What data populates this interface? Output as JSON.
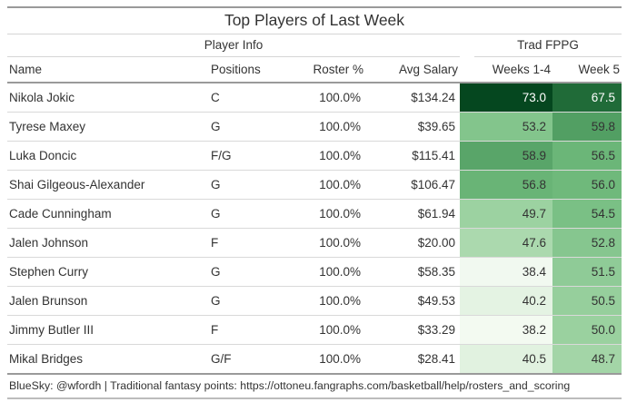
{
  "chart_data": {
    "type": "table",
    "title": "Top Players of Last Week",
    "column_groups": [
      {
        "label": "Player Info",
        "columns": [
          "Name",
          "Positions",
          "Roster %",
          "Avg Salary"
        ]
      },
      {
        "label": "Trad FPPG",
        "columns": [
          "Weeks 1-4",
          "Week 5"
        ]
      }
    ],
    "columns": [
      "Name",
      "Positions",
      "Roster %",
      "Avg Salary",
      "Weeks 1-4",
      "Week 5"
    ],
    "rows": [
      {
        "name": "Nikola Jokic",
        "positions": "C",
        "roster_pct": "100.0%",
        "avg_salary": "$134.24",
        "weeks_1_4": 73.0,
        "week_5": 67.5
      },
      {
        "name": "Tyrese Maxey",
        "positions": "G",
        "roster_pct": "100.0%",
        "avg_salary": "$39.65",
        "weeks_1_4": 53.2,
        "week_5": 59.8
      },
      {
        "name": "Luka Doncic",
        "positions": "F/G",
        "roster_pct": "100.0%",
        "avg_salary": "$115.41",
        "weeks_1_4": 58.9,
        "week_5": 56.5
      },
      {
        "name": "Shai Gilgeous-Alexander",
        "positions": "G",
        "roster_pct": "100.0%",
        "avg_salary": "$106.47",
        "weeks_1_4": 56.8,
        "week_5": 56.0
      },
      {
        "name": "Cade Cunningham",
        "positions": "G",
        "roster_pct": "100.0%",
        "avg_salary": "$61.94",
        "weeks_1_4": 49.7,
        "week_5": 54.5
      },
      {
        "name": "Jalen Johnson",
        "positions": "F",
        "roster_pct": "100.0%",
        "avg_salary": "$20.00",
        "weeks_1_4": 47.6,
        "week_5": 52.8
      },
      {
        "name": "Stephen Curry",
        "positions": "G",
        "roster_pct": "100.0%",
        "avg_salary": "$58.35",
        "weeks_1_4": 38.4,
        "week_5": 51.5
      },
      {
        "name": "Jalen Brunson",
        "positions": "G",
        "roster_pct": "100.0%",
        "avg_salary": "$49.53",
        "weeks_1_4": 40.2,
        "week_5": 50.5
      },
      {
        "name": "Jimmy Butler III",
        "positions": "F",
        "roster_pct": "100.0%",
        "avg_salary": "$33.29",
        "weeks_1_4": 38.2,
        "week_5": 50.0
      },
      {
        "name": "Mikal Bridges",
        "positions": "G/F",
        "roster_pct": "100.0%",
        "avg_salary": "$28.41",
        "weeks_1_4": 40.5,
        "week_5": 48.7
      }
    ],
    "heatmap": {
      "applies_to": [
        "weeks_1_4",
        "week_5"
      ],
      "domain": [
        38.2,
        73.0
      ],
      "palette": [
        "#f3faf1",
        "#b0dcb2",
        "#72bc7e",
        "#2f8046",
        "#05471f"
      ],
      "light_text_threshold": 0.73,
      "light_text_color": "#ffffff",
      "dark_text_color": "#333333",
      "value_decimals": 1
    },
    "source_note": "BlueSky: @wfordh | Traditional fantasy points: https://ottoneu.fangraphs.com/basketball/help/rosters_and_scoring"
  },
  "colors": {
    "text": "#333333",
    "heavy_rule": "#9a9a9a",
    "light_rule": "#d5d5d5",
    "row_separator": "#d9d9d9",
    "background": "#ffffff"
  }
}
